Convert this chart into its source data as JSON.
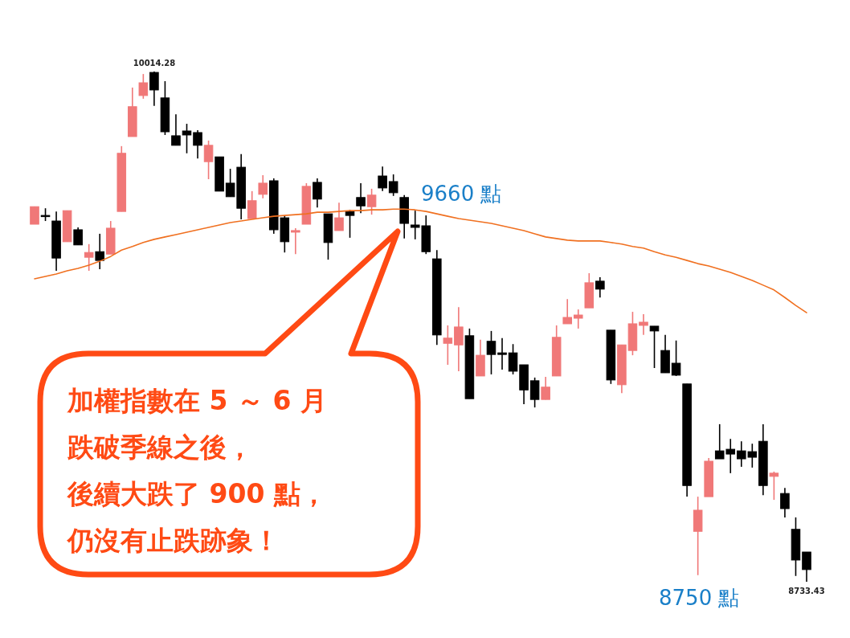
{
  "chart_data": {
    "type": "candlestick",
    "categories": [
      null,
      null,
      null,
      null,
      null,
      null,
      null,
      null,
      null,
      null,
      null,
      null,
      null,
      null,
      null,
      null,
      null,
      null,
      null,
      null,
      null,
      null,
      null,
      null,
      null,
      null,
      null,
      null,
      null,
      null,
      null,
      null,
      null,
      null,
      null,
      null,
      null,
      null,
      null,
      null,
      null,
      null,
      null,
      null,
      null,
      null,
      null,
      null,
      null,
      null,
      null,
      null,
      null,
      null,
      null,
      null,
      null,
      null,
      null,
      null,
      null,
      null,
      null,
      null,
      null,
      null,
      null,
      null,
      null,
      null,
      null,
      null
    ],
    "series": [
      {
        "type": "line",
        "color": "#f07020",
        "values": [
          9494,
          9500,
          9506,
          9514,
          9520,
          9528,
          9538,
          9550,
          9566,
          9575,
          9585,
          9593,
          9599,
          9605,
          9611,
          9617,
          9623,
          9629,
          9635,
          9639,
          9643,
          9647,
          9651,
          9653,
          9655,
          9657,
          9661,
          9661,
          9663,
          9665,
          9665,
          9667,
          9667,
          9669,
          9669,
          9667,
          9663,
          9657,
          9651,
          9645,
          9641,
          9637,
          9633,
          9627,
          9621,
          9615,
          9607,
          9599,
          9595,
          9591,
          9589,
          9589,
          9589,
          9585,
          9581,
          9575,
          9571,
          9562,
          9554,
          9548,
          9540,
          9532,
          9526,
          9518,
          9510,
          9500,
          9490,
          9478,
          9466,
          9447,
          9427,
          9409
        ]
      },
      {
        "ohlc": [
          [
            9631,
            9675,
            9631,
            9675
          ],
          [
            9653,
            9671,
            9639,
            9651
          ],
          [
            9639,
            9663,
            9514,
            9546
          ],
          [
            9587,
            9665,
            9587,
            9665
          ],
          [
            9617,
            9623,
            9579,
            9579
          ],
          [
            9548,
            9581,
            9514,
            9560
          ],
          [
            9562,
            9607,
            9518,
            9540
          ],
          [
            9556,
            9639,
            9556,
            9621
          ],
          [
            9663,
            9827,
            9663,
            9809
          ],
          [
            9851,
            9974,
            9851,
            9926
          ],
          [
            9954,
            10008,
            9946,
            9986
          ],
          [
            10012,
            10014.28,
            9928,
            9968
          ],
          [
            9948,
            9990,
            9855,
            9863
          ],
          [
            9853,
            9907,
            9829,
            9829
          ],
          [
            9865,
            9883,
            9809,
            9855
          ],
          [
            9861,
            9867,
            9796,
            9829
          ],
          [
            9788,
            9841,
            9744,
            9829
          ],
          [
            9800,
            9800,
            9714,
            9714
          ],
          [
            9734,
            9770,
            9700,
            9700
          ],
          [
            9774,
            9807,
            9643,
            9671
          ],
          [
            9645,
            9714,
            9645,
            9690
          ],
          [
            9706,
            9754,
            9696,
            9734
          ],
          [
            9740,
            9746,
            9607,
            9617
          ],
          [
            9647,
            9653,
            9560,
            9587
          ],
          [
            9611,
            9621,
            9556,
            9615
          ],
          [
            9631,
            9734,
            9631,
            9726
          ],
          [
            9736,
            9746,
            9673,
            9694
          ],
          [
            9657,
            9657,
            9542,
            9585
          ],
          [
            9615,
            9685,
            9615,
            9647
          ],
          [
            9663,
            9667,
            9597,
            9653
          ],
          [
            9698,
            9734,
            9659,
            9677
          ],
          [
            9675,
            9720,
            9655,
            9704
          ],
          [
            9752,
            9776,
            9714,
            9722
          ],
          [
            9738,
            9756,
            9702,
            9710
          ],
          [
            9698,
            9704,
            9595,
            9633
          ],
          [
            9629,
            9665,
            9593,
            9623
          ],
          [
            9627,
            9653,
            9556,
            9562
          ],
          [
            9544,
            9566,
            9328,
            9353
          ],
          [
            9332,
            9377,
            9278,
            9345
          ],
          [
            9328,
            9423,
            9262,
            9373
          ],
          [
            9351,
            9369,
            9193,
            9193
          ],
          [
            9250,
            9341,
            9250,
            9302
          ],
          [
            9337,
            9363,
            9254,
            9304
          ],
          [
            9308,
            9345,
            9266,
            9304
          ],
          [
            9308,
            9330,
            9254,
            9262
          ],
          [
            9278,
            9278,
            9179,
            9215
          ],
          [
            9238,
            9246,
            9171,
            9191
          ],
          [
            9191,
            9248,
            9191,
            9222
          ],
          [
            9250,
            9377,
            9250,
            9347
          ],
          [
            9381,
            9443,
            9381,
            9397
          ],
          [
            9395,
            9417,
            9369,
            9403
          ],
          [
            9421,
            9508,
            9421,
            9484
          ],
          [
            9488,
            9498,
            9447,
            9468
          ],
          [
            9365,
            9365,
            9230,
            9240
          ],
          [
            9228,
            9328,
            9207,
            9328
          ],
          [
            9314,
            9411,
            9302,
            9381
          ],
          [
            9377,
            9405,
            9353,
            9385
          ],
          [
            9375,
            9375,
            9270,
            9363
          ],
          [
            9314,
            9353,
            9258,
            9258
          ],
          [
            9282,
            9339,
            9250,
            9252
          ],
          [
            9230,
            9230,
            8947,
            8975
          ],
          [
            8860,
            8947,
            8750,
            8913
          ],
          [
            8947,
            9044,
            8947,
            9036
          ],
          [
            9062,
            9129,
            9042,
            9042
          ],
          [
            9066,
            9092,
            9006,
            9054
          ],
          [
            9062,
            9086,
            9022,
            9042
          ],
          [
            9060,
            9080,
            9020,
            9046
          ],
          [
            9086,
            9129,
            8951,
            8975
          ],
          [
            8998,
            9010,
            8939,
            9006
          ],
          [
            8955,
            8969,
            8895,
            8917
          ],
          [
            8865,
            8895,
            8748,
            8788
          ],
          [
            8808,
            8808,
            8733.43,
            8764
          ]
        ],
        "colors": [
          "#f07878",
          "#000000",
          "#000000",
          "#f07878",
          "#000000",
          "#f07878",
          "#000000",
          "#f07878",
          "#f07878",
          "#f07878",
          "#f07878",
          "#000000",
          "#000000",
          "#000000",
          "#000000",
          "#000000",
          "#f07878",
          "#000000",
          "#000000",
          "#000000",
          "#f07878",
          "#f07878",
          "#000000",
          "#000000",
          "#f07878",
          "#f07878",
          "#000000",
          "#000000",
          "#f07878",
          "#000000",
          "#000000",
          "#f07878",
          "#000000",
          "#000000",
          "#000000",
          "#000000",
          "#000000",
          "#000000",
          "#f07878",
          "#f07878",
          "#000000",
          "#f07878",
          "#000000",
          "#000000",
          "#000000",
          "#000000",
          "#000000",
          "#f07878",
          "#f07878",
          "#f07878",
          "#f07878",
          "#f07878",
          "#000000",
          "#000000",
          "#f07878",
          "#f07878",
          "#f07878",
          "#000000",
          "#000000",
          "#000000",
          "#000000",
          "#f07878",
          "#f07878",
          "#000000",
          "#000000",
          "#000000",
          "#000000",
          "#000000",
          "#f07878",
          "#000000",
          "#000000",
          "#000000"
        ]
      }
    ],
    "annotations": [
      {
        "text": "10014.28",
        "y": 10014.28
      },
      {
        "text": "8733.43",
        "y": 8733.43
      },
      "9660 點",
      {
        "text": "8750 點",
        "y": 8750
      },
      "加權指數在 5 ～ 6 月",
      "跌破季線之後，",
      "後續大跌了 900 點，",
      "仍沒有止跌跡象！"
    ]
  }
}
